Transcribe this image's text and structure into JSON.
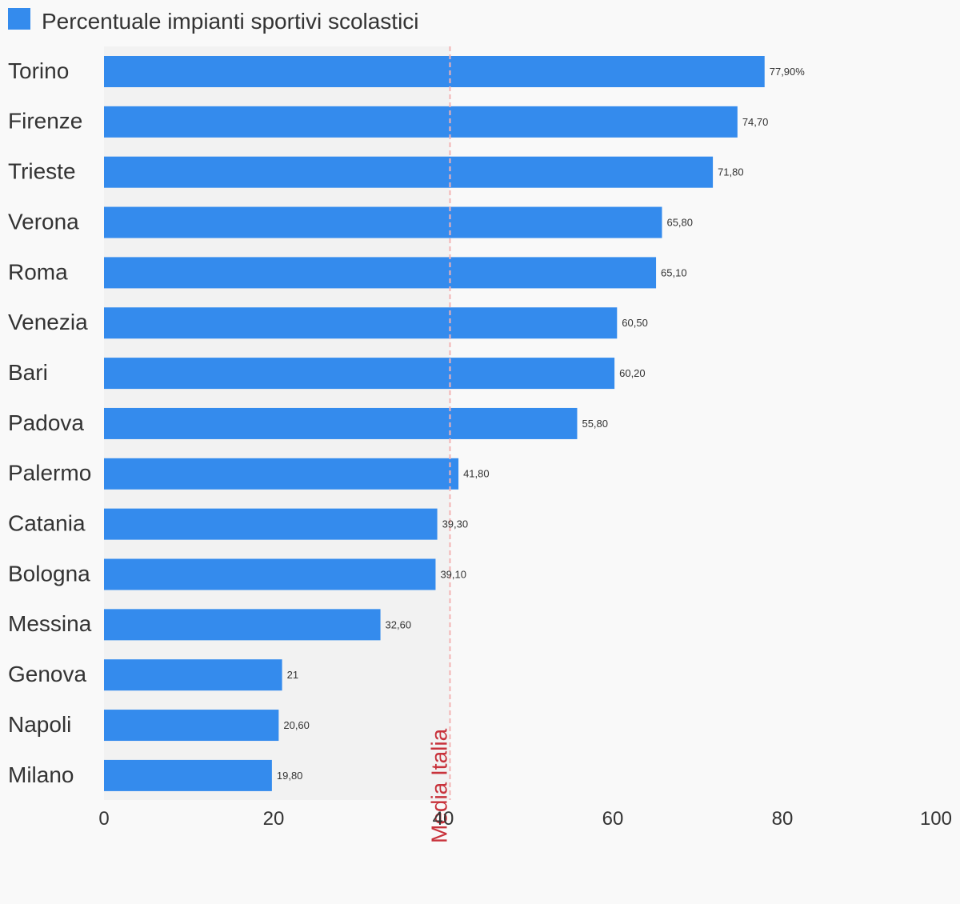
{
  "chart_data": {
    "type": "bar",
    "orientation": "horizontal",
    "categories": [
      "Torino",
      "Firenze",
      "Trieste",
      "Verona",
      "Roma",
      "Venezia",
      "Bari",
      "Padova",
      "Palermo",
      "Catania",
      "Bologna",
      "Messina",
      "Genova",
      "Napoli",
      "Milano"
    ],
    "series": [
      {
        "name": "Percentuale impianti sportivi scolastici",
        "values": [
          77.9,
          74.7,
          71.8,
          65.8,
          65.1,
          60.5,
          60.2,
          55.8,
          41.8,
          39.3,
          39.1,
          32.6,
          21,
          20.6,
          19.8
        ],
        "value_labels": [
          "77,90%",
          "74,70",
          "71,80",
          "65,80",
          "65,10",
          "60,50",
          "60,20",
          "55,80",
          "41,80",
          "39,30",
          "39,10",
          "32,60",
          "21",
          "20,60",
          "19,80"
        ],
        "color": "#348bed"
      }
    ],
    "xlim": [
      0,
      100
    ],
    "x_ticks": [
      0,
      20,
      40,
      60,
      80,
      100
    ],
    "x_tick_labels": [
      "0",
      "20",
      "40",
      "60",
      "80",
      "100"
    ],
    "reference_line": {
      "label": "Media Italia",
      "value": 40.8,
      "color": "#c8323b"
    },
    "shaded_band": [
      0,
      40.8
    ],
    "legend_position": "top-left",
    "grid": false
  },
  "colors": {
    "background": "#f9f9f9",
    "band": "#f2f2f2",
    "bar": "#348bed",
    "text": "#333333",
    "ref_line": "#f4b3b3",
    "ref_label": "#c8323b"
  }
}
